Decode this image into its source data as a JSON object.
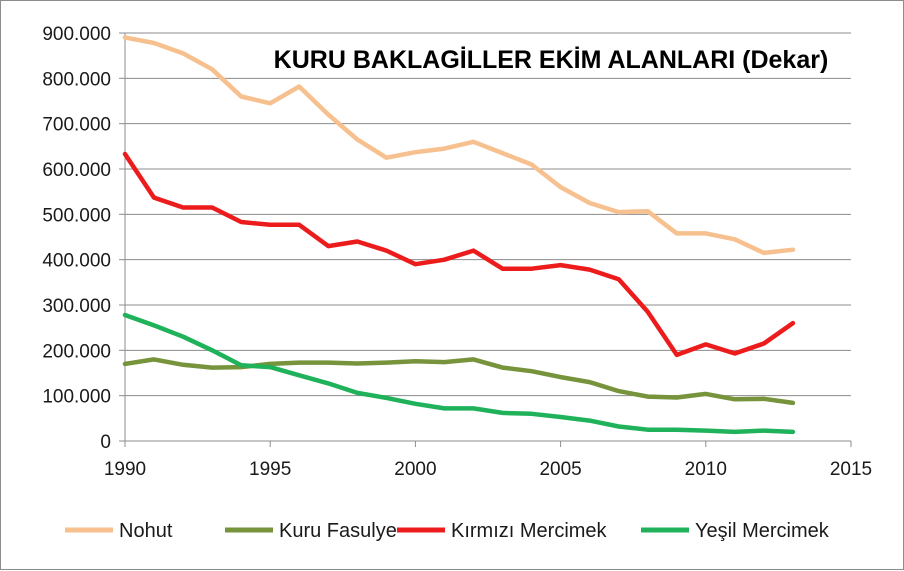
{
  "chart_data": {
    "type": "line",
    "title": "KURU BAKLAGİLLER EKİM ALANLARI (Dekar)",
    "xlabel": "",
    "ylabel": "",
    "xlim": [
      1990,
      2015
    ],
    "ylim": [
      0,
      900000
    ],
    "x_ticks": [
      "1990",
      "1995",
      "2000",
      "2005",
      "2010",
      "2015"
    ],
    "x_tick_values": [
      1990,
      1995,
      2000,
      2005,
      2010,
      2015
    ],
    "y_ticks": [
      "0",
      "100.000",
      "200.000",
      "300.000",
      "400.000",
      "500.000",
      "600.000",
      "700.000",
      "800.000",
      "900.000"
    ],
    "y_tick_values": [
      0,
      100000,
      200000,
      300000,
      400000,
      500000,
      600000,
      700000,
      800000,
      900000
    ],
    "grid": "horizontal",
    "legend_position": "bottom",
    "x": [
      1990,
      1991,
      1992,
      1993,
      1994,
      1995,
      1996,
      1997,
      1998,
      1999,
      2000,
      2001,
      2002,
      2003,
      2004,
      2005,
      2006,
      2007,
      2008,
      2009,
      2010,
      2011,
      2012,
      2013
    ],
    "series": [
      {
        "name": "Nohut",
        "color": "#f7c08f",
        "values": [
          890000,
          878000,
          855000,
          820000,
          760000,
          745000,
          782000,
          720000,
          665000,
          625000,
          637000,
          645000,
          660000,
          635000,
          610000,
          560000,
          525000,
          505000,
          507000,
          458000,
          458000,
          445000,
          415000,
          422000
        ]
      },
      {
        "name": "Kuru Fasulye",
        "color": "#77933c",
        "values": [
          170000,
          180000,
          168000,
          162000,
          163000,
          170000,
          173000,
          173000,
          171000,
          173000,
          176000,
          174000,
          180000,
          162000,
          154000,
          141000,
          130000,
          110000,
          98000,
          96000,
          104000,
          92000,
          93000,
          84000
        ]
      },
      {
        "name": "Kırmızı Mercimek",
        "color": "#ed1c1c",
        "values": [
          633000,
          537000,
          515000,
          515000,
          483000,
          477000,
          477000,
          430000,
          440000,
          420000,
          390000,
          400000,
          420000,
          380000,
          380000,
          388000,
          378000,
          357000,
          285000,
          190000,
          213000,
          193000,
          215000,
          260000
        ]
      },
      {
        "name": "Yeşil Mercimek",
        "color": "#1fb25a",
        "values": [
          278000,
          255000,
          230000,
          200000,
          167000,
          163000,
          145000,
          127000,
          106000,
          95000,
          82000,
          72000,
          72000,
          62000,
          60000,
          53000,
          45000,
          32000,
          25000,
          25000,
          23000,
          20000,
          23000,
          20000
        ]
      }
    ]
  }
}
